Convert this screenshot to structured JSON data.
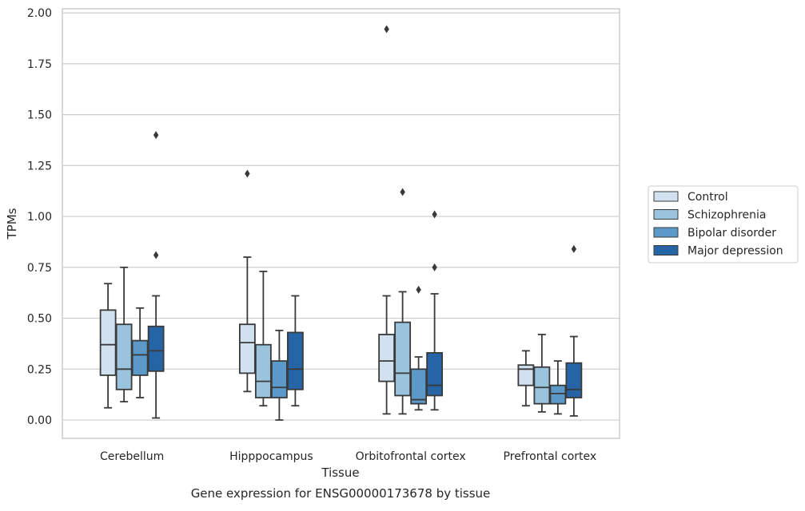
{
  "chart_data": {
    "type": "box",
    "title": "Gene expression for ENSG00000173678 by tissue",
    "xlabel": "Tissue",
    "ylabel": "TPMs",
    "ylim": [
      -0.09,
      2.02
    ],
    "yticks": [
      0.0,
      0.25,
      0.5,
      0.75,
      1.0,
      1.25,
      1.5,
      1.75,
      2.0
    ],
    "ytick_labels": [
      "0.00",
      "0.25",
      "0.50",
      "0.75",
      "1.00",
      "1.25",
      "1.50",
      "1.75",
      "2.00"
    ],
    "categories": [
      "Cerebellum",
      "Hipppocampus",
      "Orbitofrontal cortex",
      "Prefrontal cortex"
    ],
    "grid": true,
    "legend_position": "right",
    "series": [
      {
        "name": "Control",
        "color": "#d1e1f0",
        "boxes": [
          {
            "whislo": 0.06,
            "q1": 0.22,
            "med": 0.37,
            "q3": 0.54,
            "whishi": 0.67,
            "fliers": []
          },
          {
            "whislo": 0.14,
            "q1": 0.23,
            "med": 0.38,
            "q3": 0.47,
            "whishi": 0.8,
            "fliers": [
              1.21
            ]
          },
          {
            "whislo": 0.03,
            "q1": 0.19,
            "med": 0.29,
            "q3": 0.42,
            "whishi": 0.61,
            "fliers": [
              1.92
            ]
          },
          {
            "whislo": 0.07,
            "q1": 0.17,
            "med": 0.25,
            "q3": 0.27,
            "whishi": 0.34,
            "fliers": []
          }
        ]
      },
      {
        "name": "Schizophrenia",
        "color": "#9ac3dd",
        "boxes": [
          {
            "whislo": 0.09,
            "q1": 0.15,
            "med": 0.25,
            "q3": 0.47,
            "whishi": 0.75,
            "fliers": []
          },
          {
            "whislo": 0.07,
            "q1": 0.11,
            "med": 0.19,
            "q3": 0.37,
            "whishi": 0.73,
            "fliers": []
          },
          {
            "whislo": 0.03,
            "q1": 0.12,
            "med": 0.23,
            "q3": 0.48,
            "whishi": 0.63,
            "fliers": [
              1.12
            ]
          },
          {
            "whislo": 0.04,
            "q1": 0.08,
            "med": 0.16,
            "q3": 0.26,
            "whishi": 0.42,
            "fliers": []
          }
        ]
      },
      {
        "name": "Bipolar disorder",
        "color": "#5b9ac8",
        "boxes": [
          {
            "whislo": 0.11,
            "q1": 0.22,
            "med": 0.32,
            "q3": 0.39,
            "whishi": 0.55,
            "fliers": []
          },
          {
            "whislo": 0.0,
            "q1": 0.11,
            "med": 0.16,
            "q3": 0.29,
            "whishi": 0.44,
            "fliers": []
          },
          {
            "whislo": 0.05,
            "q1": 0.08,
            "med": 0.1,
            "q3": 0.25,
            "whishi": 0.31,
            "fliers": [
              0.64
            ]
          },
          {
            "whislo": 0.03,
            "q1": 0.08,
            "med": 0.13,
            "q3": 0.17,
            "whishi": 0.29,
            "fliers": []
          }
        ]
      },
      {
        "name": "Major depression",
        "color": "#2565a5",
        "boxes": [
          {
            "whislo": 0.01,
            "q1": 0.24,
            "med": 0.34,
            "q3": 0.46,
            "whishi": 0.61,
            "fliers": [
              0.81,
              1.4
            ]
          },
          {
            "whislo": 0.07,
            "q1": 0.15,
            "med": 0.25,
            "q3": 0.43,
            "whishi": 0.61,
            "fliers": []
          },
          {
            "whislo": 0.05,
            "q1": 0.12,
            "med": 0.17,
            "q3": 0.33,
            "whishi": 0.62,
            "fliers": [
              0.75,
              1.01
            ]
          },
          {
            "whislo": 0.02,
            "q1": 0.11,
            "med": 0.15,
            "q3": 0.28,
            "whishi": 0.41,
            "fliers": [
              0.84
            ]
          }
        ]
      }
    ]
  }
}
